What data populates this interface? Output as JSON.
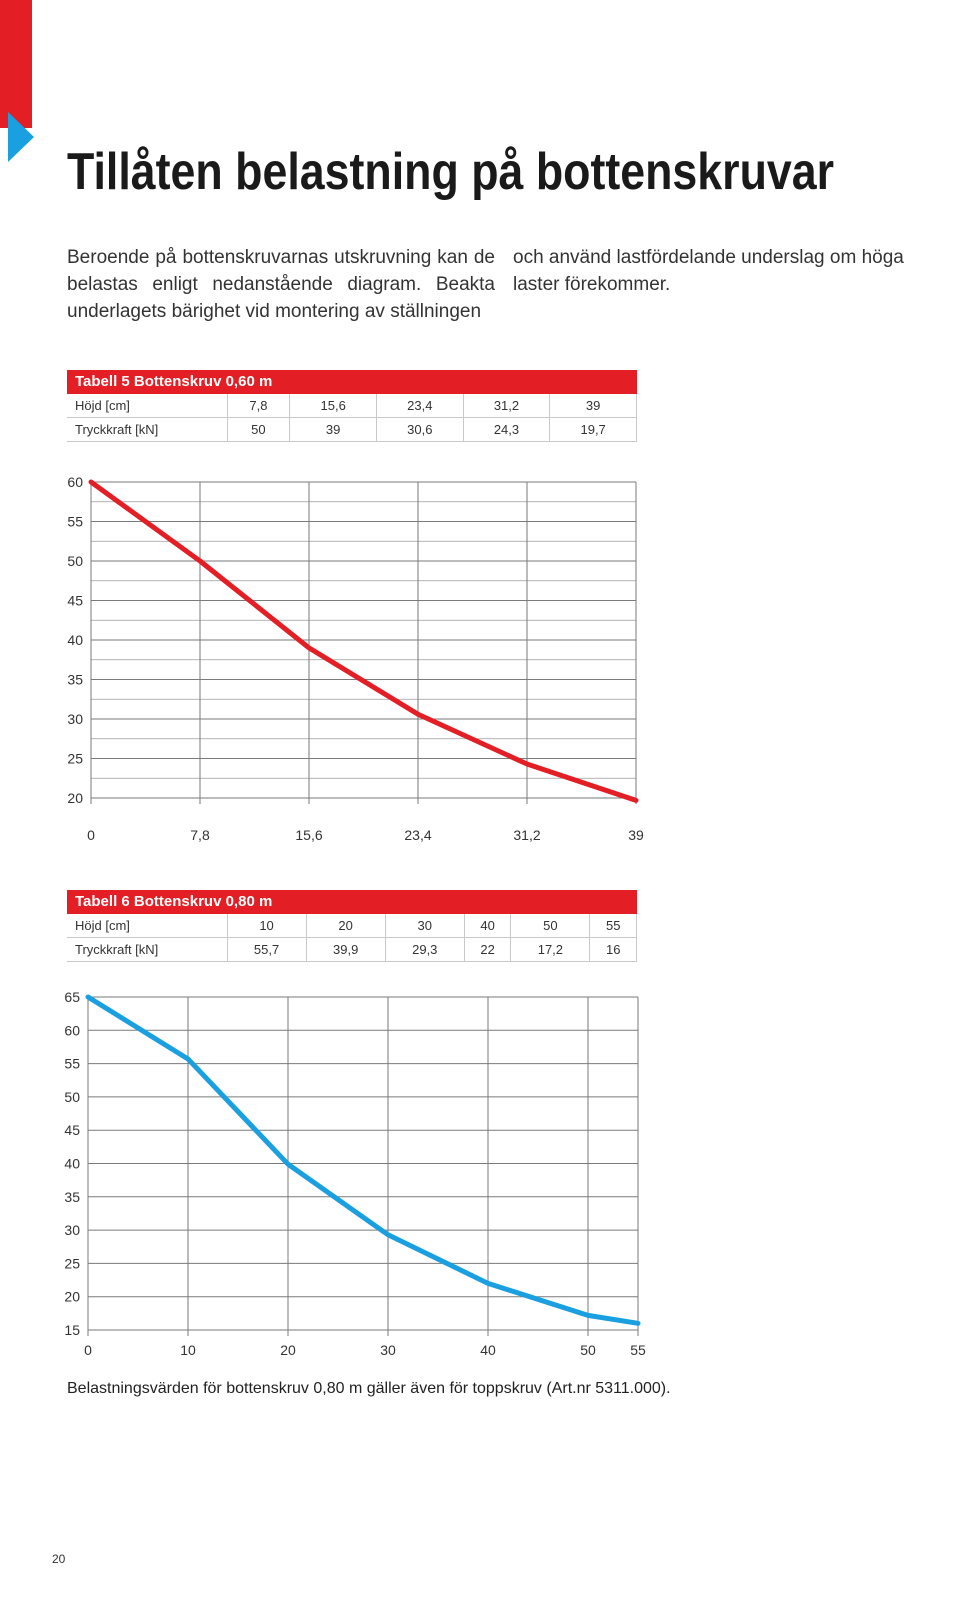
{
  "header": {
    "title": "Tillåten belastning på bottenskruvar",
    "accent_color": "#e31e24",
    "marker_color": "#1aa0e0"
  },
  "intro": {
    "left": "Beroende på bottenskruvarnas utskruvning kan de belastas enligt nedanstående diagram. Beakta underlagets bärighet vid montering av ställningen",
    "right": "och använd lastfördelande underslag om höga laster förekommer."
  },
  "table5": {
    "caption": "Tabell 5 Bottenskruv 0,60 m",
    "row1_label": "Höjd [cm]",
    "row1": [
      "7,8",
      "15,6",
      "23,4",
      "31,2",
      "39"
    ],
    "row2_label": "Tryckkraft [kN]",
    "row2": [
      "50",
      "39",
      "30,6",
      "24,3",
      "19,7"
    ]
  },
  "table6": {
    "caption": "Tabell 6 Bottenskruv 0,80 m",
    "row1_label": "Höjd [cm]",
    "row1": [
      "10",
      "20",
      "30",
      "40",
      "50",
      "55"
    ],
    "row2_label": "Tryckkraft [kN]",
    "row2": [
      "55,7",
      "39,9",
      "29,3",
      "22",
      "17,2",
      "16"
    ]
  },
  "chart_data": [
    {
      "type": "line",
      "color": "#e31e24",
      "x": [
        0,
        7.8,
        15.6,
        23.4,
        31.2,
        39
      ],
      "y": [
        60,
        50,
        39,
        30.6,
        24.3,
        19.7
      ],
      "xticks": [
        0,
        7.8,
        15.6,
        23.4,
        31.2,
        39
      ],
      "xtick_labels": [
        "0",
        "7,8",
        "15,6",
        "23,4",
        "31,2",
        "39"
      ],
      "yticks": [
        60,
        55,
        50,
        45,
        40,
        35,
        30,
        25,
        20
      ],
      "xlim": [
        0,
        39
      ],
      "ylim": [
        20,
        60
      ],
      "grid": true
    },
    {
      "type": "line",
      "color": "#1aa0e0",
      "x": [
        0,
        10,
        20,
        30,
        40,
        50,
        55
      ],
      "y": [
        65,
        55.7,
        39.9,
        29.3,
        22,
        17.2,
        16
      ],
      "xticks": [
        0,
        10,
        20,
        30,
        40,
        50,
        55
      ],
      "xtick_labels": [
        "0",
        "10",
        "20",
        "30",
        "40",
        "50",
        "55"
      ],
      "yticks": [
        65,
        60,
        55,
        50,
        45,
        40,
        35,
        30,
        25,
        20,
        15
      ],
      "xlim": [
        0,
        55
      ],
      "ylim": [
        15,
        65
      ],
      "grid": true
    }
  ],
  "footnote": "Belastningsvärden för bottenskruv 0,80 m gäller även för toppskruv (Art.nr 5311.000).",
  "page_number": "20"
}
